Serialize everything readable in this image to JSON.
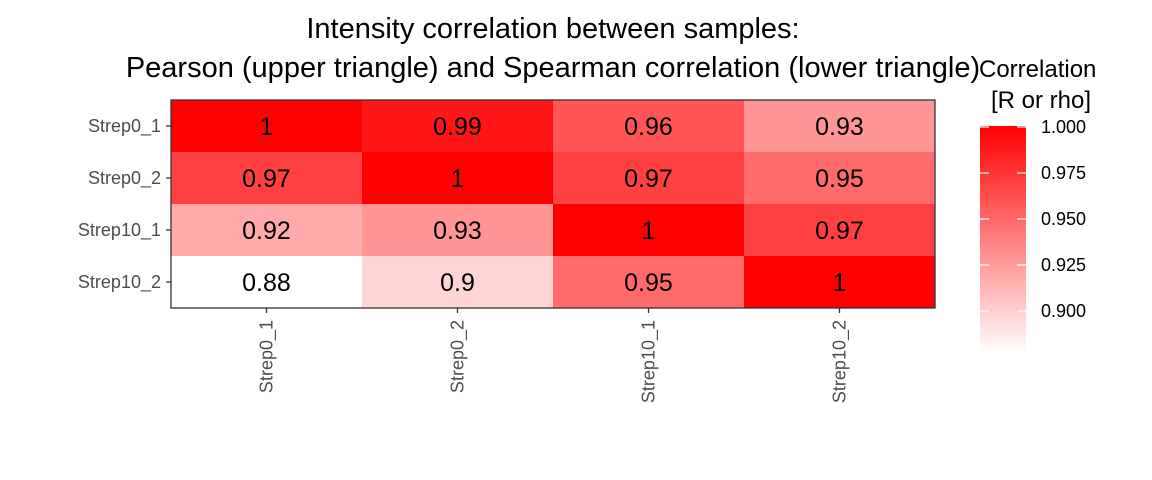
{
  "chart_data": {
    "type": "heatmap",
    "title_lines": [
      "Intensity correlation between samples:",
      "Pearson (upper triangle) and Spearman correlation (lower triangle)"
    ],
    "rows": [
      "Strep0_1",
      "Strep0_2",
      "Strep10_1",
      "Strep10_2"
    ],
    "columns": [
      "Strep0_1",
      "Strep0_2",
      "Strep10_1",
      "Strep10_2"
    ],
    "values": [
      [
        1,
        0.99,
        0.96,
        0.93
      ],
      [
        0.97,
        1,
        0.97,
        0.95
      ],
      [
        0.92,
        0.93,
        1,
        0.97
      ],
      [
        0.88,
        0.9,
        0.95,
        1
      ]
    ],
    "labels": [
      [
        "1",
        "0.99",
        "0.96",
        "0.93"
      ],
      [
        "0.97",
        "1",
        "0.97",
        "0.95"
      ],
      [
        "0.92",
        "0.93",
        "1",
        "0.97"
      ],
      [
        "0.88",
        "0.9",
        "0.95",
        "1"
      ]
    ],
    "color_range": [
      0.88,
      1.0
    ],
    "color_low": "#ffffff",
    "color_high": "#ff0000",
    "legend": {
      "title_lines": [
        "Correlation",
        "[R or rho]"
      ],
      "ticks": [
        1.0,
        0.975,
        0.95,
        0.925,
        0.9
      ],
      "tick_labels": [
        "1.000",
        "0.975",
        "0.950",
        "0.925",
        "0.900"
      ],
      "placement": "right"
    }
  }
}
